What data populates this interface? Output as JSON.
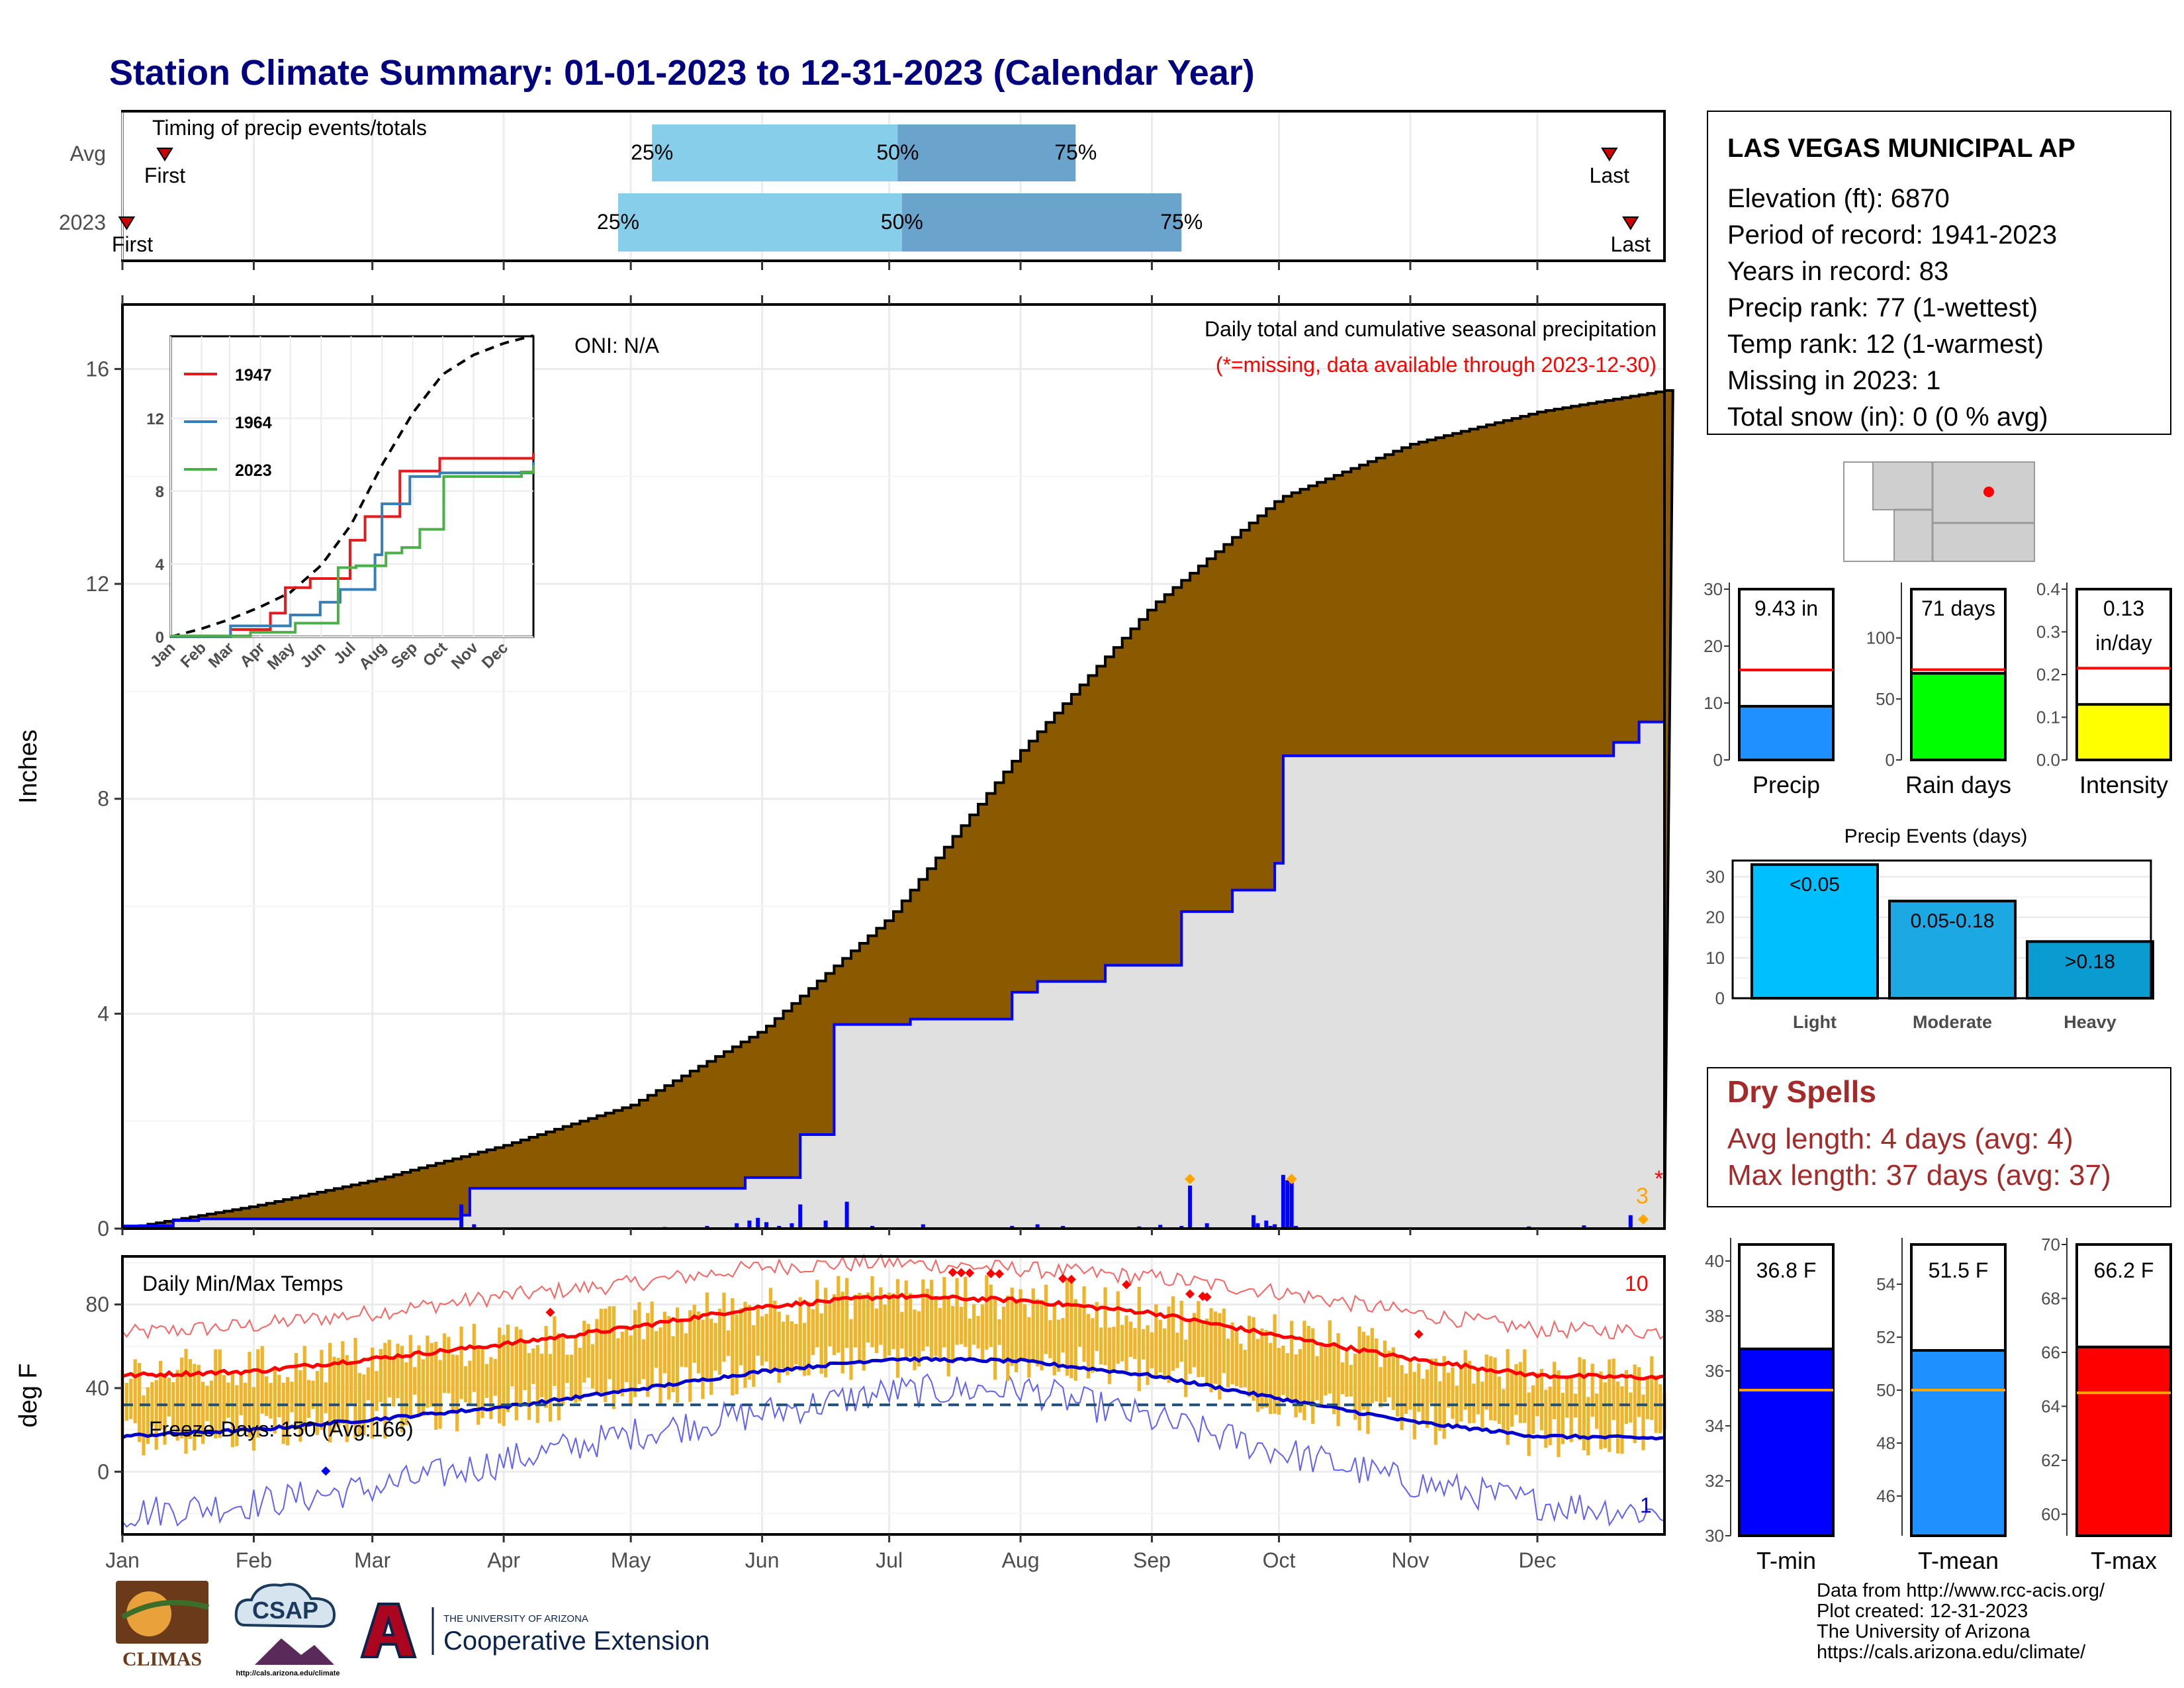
{
  "title": "Station Climate Summary: 01-01-2023 to 12-31-2023 (Calendar Year)",
  "colors": {
    "title": "#000080",
    "avg_fill": "#8B5A00",
    "year_fill": "#E0E0E0",
    "year_line": "#0000FF",
    "temp_bar": "#F0B428",
    "max_line": "#FF0000",
    "min_line": "#0000CD"
  },
  "timing": {
    "label": "Timing of precip events/totals",
    "rows": [
      {
        "name": "Avg",
        "first_label": "First",
        "last_label": "Last",
        "p25": "25%",
        "p50": "50%",
        "p75": "75%",
        "first_day": 10,
        "last_day": 351,
        "q25": 125,
        "q50": 183,
        "q75": 225
      },
      {
        "name": "2023",
        "first_label": "First",
        "last_label": "Last",
        "p25": "25%",
        "p50": "50%",
        "p75": "75%",
        "first_day": 1,
        "last_day": 356,
        "q25": 117,
        "q50": 184,
        "q75": 250
      }
    ]
  },
  "precip": {
    "ylabel": "Inches",
    "yticks": [
      "0",
      "4",
      "8",
      "12",
      "16"
    ],
    "oni": "ONI: N/A",
    "caption": "Daily total and cumulative seasonal precipitation",
    "missing_note": "(*=missing, data available through 2023-12-30)",
    "marker_label": "3",
    "missing_mark": "*"
  },
  "inset": {
    "legend": [
      "1947",
      "1964",
      "2023"
    ],
    "legend_colors": [
      "#E41A1C",
      "#377EB8",
      "#4DAF4A"
    ],
    "yticks": [
      "0",
      "4",
      "8",
      "12"
    ],
    "months": [
      "Jan",
      "Feb",
      "Mar",
      "Apr",
      "May",
      "Jun",
      "Jul",
      "Aug",
      "Sep",
      "Oct",
      "Nov",
      "Dec"
    ]
  },
  "temps": {
    "label": "Daily Min/Max Temps",
    "ylabel": "deg F",
    "yticks": [
      "0",
      "40",
      "80"
    ],
    "freeze": "Freeze Days: 150 (Avg:166)",
    "max_count": "10",
    "min_count": "1"
  },
  "months": [
    "Jan",
    "Feb",
    "Mar",
    "Apr",
    "May",
    "Jun",
    "Jul",
    "Aug",
    "Sep",
    "Oct",
    "Nov",
    "Dec"
  ],
  "station": {
    "name": "LAS VEGAS MUNICIPAL AP",
    "lines": [
      "Elevation (ft): 6870",
      "Period of record: 1941-2023",
      "Years in record: 83",
      "Precip rank: 77 (1-wettest)",
      "Temp rank: 12 (1-warmest)",
      "Missing in 2023: 1",
      "Total snow (in): 0 (0 % avg)"
    ]
  },
  "bars": {
    "precip": {
      "label": "Precip",
      "value_text": "9.43 in",
      "value": 9.43,
      "avg": 15.8,
      "ymax": 30,
      "yticks": [
        "0",
        "10",
        "20",
        "30"
      ],
      "color": "#1E90FF"
    },
    "raindays": {
      "label": "Rain days",
      "value_text": "71 days",
      "value": 71,
      "avg": 74,
      "ymax": 140,
      "yticks": [
        "0",
        "50",
        "100"
      ],
      "color": "#00FF00"
    },
    "intensity": {
      "label": "Intensity",
      "value_text": "0.13",
      "value_text2": "in/day",
      "value": 0.13,
      "avg": 0.215,
      "ymax": 0.4,
      "yticks": [
        "0.0",
        "0.1",
        "0.2",
        "0.3",
        "0.4"
      ],
      "color": "#FFFF00"
    }
  },
  "events": {
    "title": "Precip Events (days)",
    "categories": [
      "Light",
      "Moderate",
      "Heavy"
    ],
    "labels": [
      "<0.05",
      "0.05-0.18",
      ">0.18"
    ],
    "values": [
      33,
      24,
      14
    ],
    "yticks": [
      "0",
      "10",
      "20",
      "30"
    ],
    "colors": [
      "#00BFFF",
      "#1CA9E3",
      "#0A9BD0"
    ]
  },
  "dry": {
    "title": "Dry Spells",
    "avg": "Avg length: 4 days (avg: 4)",
    "max": "Max length: 37 days (avg: 37)",
    "color": "#A52A2A"
  },
  "tbars": {
    "tmin": {
      "label": "T-min",
      "value_text": "36.8 F",
      "value": 36.8,
      "avg": 35.3,
      "ymin": 30,
      "ymax": 40.6,
      "yticks": [
        "30",
        "32",
        "34",
        "36",
        "38",
        "40"
      ],
      "color": "#0000FF"
    },
    "tmean": {
      "label": "T-mean",
      "value_text": "51.5 F",
      "value": 51.5,
      "avg": 50.0,
      "ymin": 44.5,
      "ymax": 55.5,
      "yticks": [
        "46",
        "48",
        "50",
        "52",
        "54"
      ],
      "color": "#1E90FF"
    },
    "tmax": {
      "label": "T-max",
      "value_text": "66.2 F",
      "value": 66.2,
      "avg": 64.5,
      "ymin": 59.2,
      "ymax": 70,
      "yticks": [
        "60",
        "62",
        "64",
        "66",
        "68",
        "70"
      ],
      "color": "#FF0000"
    }
  },
  "credits": [
    "Data from http://www.rcc-acis.org/",
    "Plot created: 12-31-2023",
    "The University of Arizona",
    "https://cals.arizona.edu/climate/"
  ],
  "logos": {
    "climas": "CLIMAS",
    "csap": "CSAP",
    "csap_url": "http://cals.arizona.edu/climate",
    "ua_small": "THE UNIVERSITY OF ARIZONA",
    "ua_big": "Cooperative Extension"
  },
  "chart_data": {
    "type": "area",
    "series": [
      {
        "name": "Avg cumulative precip (in)",
        "x": [
          0,
          31,
          59,
          90,
          120,
          151,
          181,
          212,
          243,
          273,
          304,
          334,
          364
        ],
        "values": [
          0,
          0.42,
          0.9,
          1.55,
          2.3,
          3.7,
          5.8,
          8.9,
          11.6,
          13.6,
          14.6,
          15.2,
          15.6
        ]
      },
      {
        "name": "2023 cumulative precip (in)",
        "x": [
          0,
          12,
          18,
          25,
          80,
          82,
          125,
          147,
          160,
          168,
          186,
          210,
          216,
          232,
          250,
          262,
          272,
          274,
          300,
          352,
          358,
          364
        ],
        "values": [
          0.05,
          0.15,
          0.18,
          0.18,
          0.25,
          0.75,
          0.75,
          0.95,
          1.75,
          3.8,
          3.9,
          4.4,
          4.6,
          4.9,
          5.9,
          6.3,
          6.8,
          8.8,
          8.8,
          9.05,
          9.43,
          9.43
        ]
      },
      {
        "name": "Daily precip 2023 (in)",
        "x": [
          80,
          83,
          128,
          138,
          145,
          148,
          150,
          152,
          155,
          158,
          160,
          166,
          171,
          177,
          189,
          210,
          216,
          222,
          240,
          245,
          250,
          252,
          256,
          267,
          268,
          270,
          271,
          272,
          274,
          275,
          276,
          277,
          332,
          345,
          356
        ],
        "values": [
          0.45,
          0.08,
          0.03,
          0.05,
          0.1,
          0.15,
          0.2,
          0.12,
          0.05,
          0.1,
          0.45,
          0.15,
          0.5,
          0.05,
          0.08,
          0.05,
          0.08,
          0.05,
          0.04,
          0.07,
          0.05,
          0.8,
          0.1,
          0.25,
          0.1,
          0.15,
          0.05,
          0.08,
          1.0,
          0.9,
          0.95,
          0.05,
          0.04,
          0.06,
          0.25
        ]
      },
      {
        "name": "1947",
        "x": [
          0,
          60,
          100,
          115,
          140,
          180,
          195,
          230,
          270,
          364
        ],
        "values": [
          0,
          0.4,
          1.3,
          2.7,
          3.2,
          5.3,
          6.6,
          9.1,
          9.8,
          10.1
        ]
      },
      {
        "name": "1964",
        "x": [
          0,
          60,
          120,
          150,
          170,
          205,
          212,
          240,
          270,
          364
        ],
        "values": [
          0,
          0.6,
          1.2,
          1.9,
          2.6,
          4.5,
          7.3,
          8.8,
          9.0,
          9.6
        ]
      },
      {
        "name": "2023",
        "x": [
          0,
          80,
          125,
          168,
          186,
          216,
          232,
          250,
          274,
          352,
          364
        ],
        "values": [
          0.05,
          0.25,
          0.75,
          3.8,
          3.9,
          4.6,
          4.9,
          5.9,
          8.8,
          9.05,
          9.43
        ]
      }
    ],
    "temperature": {
      "avg_max": {
        "x": [
          0,
          31,
          59,
          90,
          120,
          151,
          181,
          212,
          243,
          273,
          304,
          334,
          364
        ],
        "values": [
          46,
          48,
          54,
          61,
          69,
          79,
          84,
          82,
          76,
          65,
          54,
          46,
          45
        ]
      },
      "avg_min": {
        "x": [
          0,
          31,
          59,
          90,
          120,
          151,
          181,
          212,
          243,
          273,
          304,
          334,
          364
        ],
        "values": [
          17,
          20,
          25,
          31,
          39,
          48,
          54,
          53,
          46,
          35,
          24,
          17,
          16
        ]
      },
      "record_max": {
        "x": [
          0,
          31,
          59,
          90,
          120,
          151,
          181,
          212,
          243,
          273,
          304,
          334,
          364
        ],
        "values": [
          66,
          70,
          76,
          84,
          90,
          98,
          100,
          97,
          93,
          86,
          76,
          68,
          67
        ]
      },
      "record_min": {
        "x": [
          0,
          31,
          59,
          90,
          120,
          151,
          181,
          212,
          243,
          273,
          304,
          334,
          364
        ],
        "values": [
          -20,
          -15,
          -8,
          5,
          18,
          28,
          38,
          40,
          25,
          10,
          -5,
          -15,
          -20
        ]
      },
      "freeze_line": 32,
      "avg_line": 32
    },
    "xlabel": "",
    "ylabel": "Inches",
    "ylim": [
      0,
      17
    ]
  }
}
